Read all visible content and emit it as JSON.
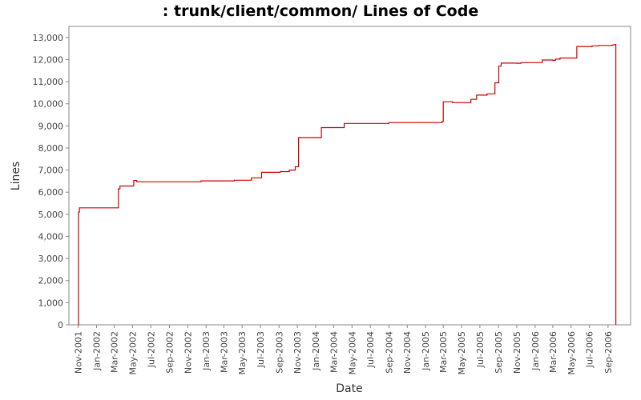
{
  "chart_data": {
    "type": "line",
    "title": ": trunk/client/common/ Lines of Code",
    "xlabel": "Date",
    "ylabel": "Lines",
    "ylim": [
      0,
      13500
    ],
    "xlim": [
      "2001-10-01",
      "2006-11-15"
    ],
    "y_ticks": [
      0,
      1000,
      2000,
      3000,
      4000,
      5000,
      6000,
      7000,
      8000,
      9000,
      10000,
      11000,
      12000,
      13000
    ],
    "y_tick_labels": [
      "0",
      "1,000",
      "2,000",
      "3,000",
      "4,000",
      "5,000",
      "6,000",
      "7,000",
      "8,000",
      "9,000",
      "10,000",
      "11,000",
      "12,000",
      "13,000"
    ],
    "x_ticks": [
      {
        "date": "2001-11-01",
        "label": "Nov-2001"
      },
      {
        "date": "2002-01-01",
        "label": "Jan-2002"
      },
      {
        "date": "2002-03-01",
        "label": "Mar-2002"
      },
      {
        "date": "2002-05-01",
        "label": "May-2002"
      },
      {
        "date": "2002-07-01",
        "label": "Jul-2002"
      },
      {
        "date": "2002-09-01",
        "label": "Sep-2002"
      },
      {
        "date": "2002-11-01",
        "label": "Nov-2002"
      },
      {
        "date": "2003-01-01",
        "label": "Jan-2003"
      },
      {
        "date": "2003-03-01",
        "label": "Mar-2003"
      },
      {
        "date": "2003-05-01",
        "label": "May-2003"
      },
      {
        "date": "2003-07-01",
        "label": "Jul-2003"
      },
      {
        "date": "2003-09-01",
        "label": "Sep-2003"
      },
      {
        "date": "2003-11-01",
        "label": "Nov-2003"
      },
      {
        "date": "2004-01-01",
        "label": "Jan-2004"
      },
      {
        "date": "2004-03-01",
        "label": "Mar-2004"
      },
      {
        "date": "2004-05-01",
        "label": "May-2004"
      },
      {
        "date": "2004-07-01",
        "label": "Jul-2004"
      },
      {
        "date": "2004-09-01",
        "label": "Sep-2004"
      },
      {
        "date": "2004-11-01",
        "label": "Nov-2004"
      },
      {
        "date": "2005-01-01",
        "label": "Jan-2005"
      },
      {
        "date": "2005-03-01",
        "label": "Mar-2005"
      },
      {
        "date": "2005-05-01",
        "label": "May-2005"
      },
      {
        "date": "2005-07-01",
        "label": "Jul-2005"
      },
      {
        "date": "2005-09-01",
        "label": "Sep-2005"
      },
      {
        "date": "2005-11-01",
        "label": "Nov-2005"
      },
      {
        "date": "2006-01-01",
        "label": "Jan-2006"
      },
      {
        "date": "2006-03-01",
        "label": "Mar-2006"
      },
      {
        "date": "2006-05-01",
        "label": "May-2006"
      },
      {
        "date": "2006-07-01",
        "label": "Jul-2006"
      },
      {
        "date": "2006-09-01",
        "label": "Sep-2006"
      }
    ],
    "grid": false,
    "line_color": "#cc0000",
    "series": [
      {
        "step": true,
        "points": [
          {
            "x": "2001-11-01",
            "y": 0
          },
          {
            "x": "2001-11-02",
            "y": 5100
          },
          {
            "x": "2001-11-05",
            "y": 5290
          },
          {
            "x": "2002-03-15",
            "y": 6150
          },
          {
            "x": "2002-03-20",
            "y": 6280
          },
          {
            "x": "2002-05-05",
            "y": 6530
          },
          {
            "x": "2002-05-15",
            "y": 6470
          },
          {
            "x": "2002-12-15",
            "y": 6510
          },
          {
            "x": "2003-04-05",
            "y": 6540
          },
          {
            "x": "2003-06-01",
            "y": 6650
          },
          {
            "x": "2003-07-05",
            "y": 6900
          },
          {
            "x": "2003-09-05",
            "y": 6930
          },
          {
            "x": "2003-10-05",
            "y": 7000
          },
          {
            "x": "2003-10-25",
            "y": 7150
          },
          {
            "x": "2003-11-05",
            "y": 8470
          },
          {
            "x": "2004-01-20",
            "y": 8920
          },
          {
            "x": "2004-04-05",
            "y": 9110
          },
          {
            "x": "2004-09-01",
            "y": 9150
          },
          {
            "x": "2005-02-25",
            "y": 9200
          },
          {
            "x": "2005-03-01",
            "y": 10090
          },
          {
            "x": "2005-04-01",
            "y": 10050
          },
          {
            "x": "2005-06-01",
            "y": 10200
          },
          {
            "x": "2005-06-20",
            "y": 10390
          },
          {
            "x": "2005-07-25",
            "y": 10450
          },
          {
            "x": "2005-08-20",
            "y": 10950
          },
          {
            "x": "2005-09-02",
            "y": 11700
          },
          {
            "x": "2005-09-10",
            "y": 11840
          },
          {
            "x": "2005-11-01",
            "y": 11830
          },
          {
            "x": "2005-11-15",
            "y": 11860
          },
          {
            "x": "2006-01-25",
            "y": 11980
          },
          {
            "x": "2006-03-01",
            "y": 11960
          },
          {
            "x": "2006-03-10",
            "y": 12020
          },
          {
            "x": "2006-03-25",
            "y": 12070
          },
          {
            "x": "2006-05-20",
            "y": 12590
          },
          {
            "x": "2006-07-10",
            "y": 12620
          },
          {
            "x": "2006-08-01",
            "y": 12640
          },
          {
            "x": "2006-09-15",
            "y": 12660
          },
          {
            "x": "2006-09-22",
            "y": 12680
          },
          {
            "x": "2006-09-27",
            "y": 0
          }
        ]
      }
    ]
  }
}
